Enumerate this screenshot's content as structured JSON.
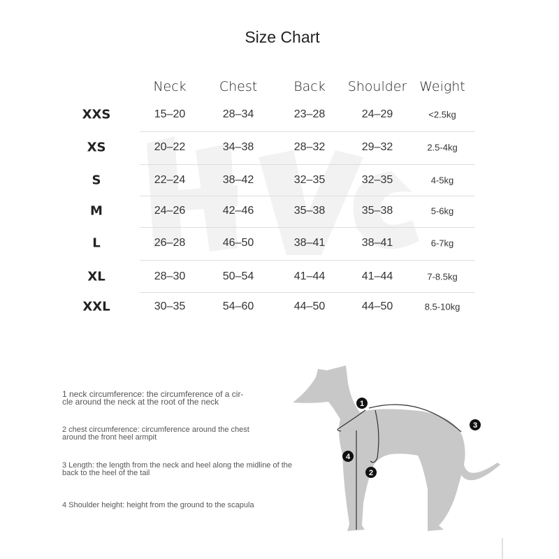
{
  "title": "Size Chart",
  "columns": [
    "Neck",
    "Chest",
    "Back",
    "Shoulder",
    "Weight"
  ],
  "rows": [
    {
      "size": "XXS",
      "neck": "15–20",
      "chest": "28–34",
      "back": "23–28",
      "shoulder": "24–29",
      "weight": "<2.5kg"
    },
    {
      "size": "XS",
      "neck": "20–22",
      "chest": "34–38",
      "back": "28–32",
      "shoulder": "29–32",
      "weight": "2.5-4kg"
    },
    {
      "size": "S",
      "neck": "22–24",
      "chest": "38–42",
      "back": "32–35",
      "shoulder": "32–35",
      "weight": "4-5kg"
    },
    {
      "size": "M",
      "neck": "24–26",
      "chest": "42–46",
      "back": "35–38",
      "shoulder": "35–38",
      "weight": "5-6kg"
    },
    {
      "size": "L",
      "neck": "26–28",
      "chest": "46–50",
      "back": "38–41",
      "shoulder": "38–41",
      "weight": "6-7kg"
    },
    {
      "size": "XL",
      "neck": "28–30",
      "chest": "50–54",
      "back": "41–44",
      "shoulder": "41–44",
      "weight": "7-8.5kg"
    },
    {
      "size": "XXL",
      "neck": "30–35",
      "chest": "54–60",
      "back": "44–50",
      "shoulder": "44–50",
      "weight": "8.5-10kg"
    }
  ],
  "notes": [
    {
      "line1": "1 neck circumference: the circumference of a cir-",
      "line2": "cle around the neck at the root of the neck"
    },
    {
      "line1": "2 chest circumference: circumference around the chest",
      "line2": "around the front heel armpit"
    },
    {
      "line1": "3 Length: the length from the neck and heel along the midline of the",
      "line2": "back to the heel of the tail"
    },
    {
      "line1": "4 Shoulder height: height from the ground to the scapula",
      "line2": ""
    }
  ],
  "markers": [
    "1",
    "2",
    "3",
    "4"
  ],
  "colors": {
    "silhouette": "#c8c8c8",
    "text": "#222222",
    "rule": "#dddddd"
  }
}
